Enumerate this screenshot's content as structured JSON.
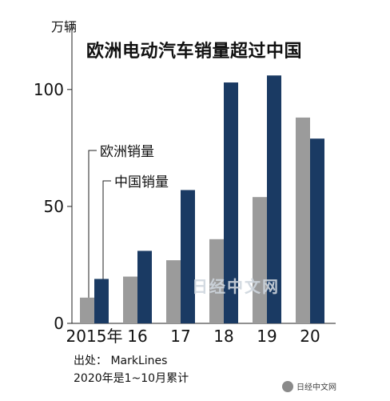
{
  "unit": "万辆",
  "title": "欧洲电动汽车销量超过中国",
  "source": "出处： MarkLines",
  "note": "2020年是1~10月累计",
  "watermark": "日经中文网",
  "wechat_account": "日经中文网",
  "chart_data": {
    "type": "bar",
    "categories": [
      "2015年",
      "16",
      "17",
      "18",
      "19",
      "20"
    ],
    "series": [
      {
        "name": "欧洲销量",
        "values": [
          11,
          20,
          27,
          36,
          54,
          88
        ]
      },
      {
        "name": "中国销量",
        "values": [
          19,
          31,
          57,
          103,
          106,
          79
        ]
      }
    ],
    "ylim": [
      0,
      128
    ],
    "yticks": [
      0,
      50,
      100
    ],
    "colors": {
      "欧洲销量": "#9b9b9b",
      "中国销量": "#1a3a63"
    },
    "grid": false,
    "legend_placement": "left, inside plot"
  }
}
